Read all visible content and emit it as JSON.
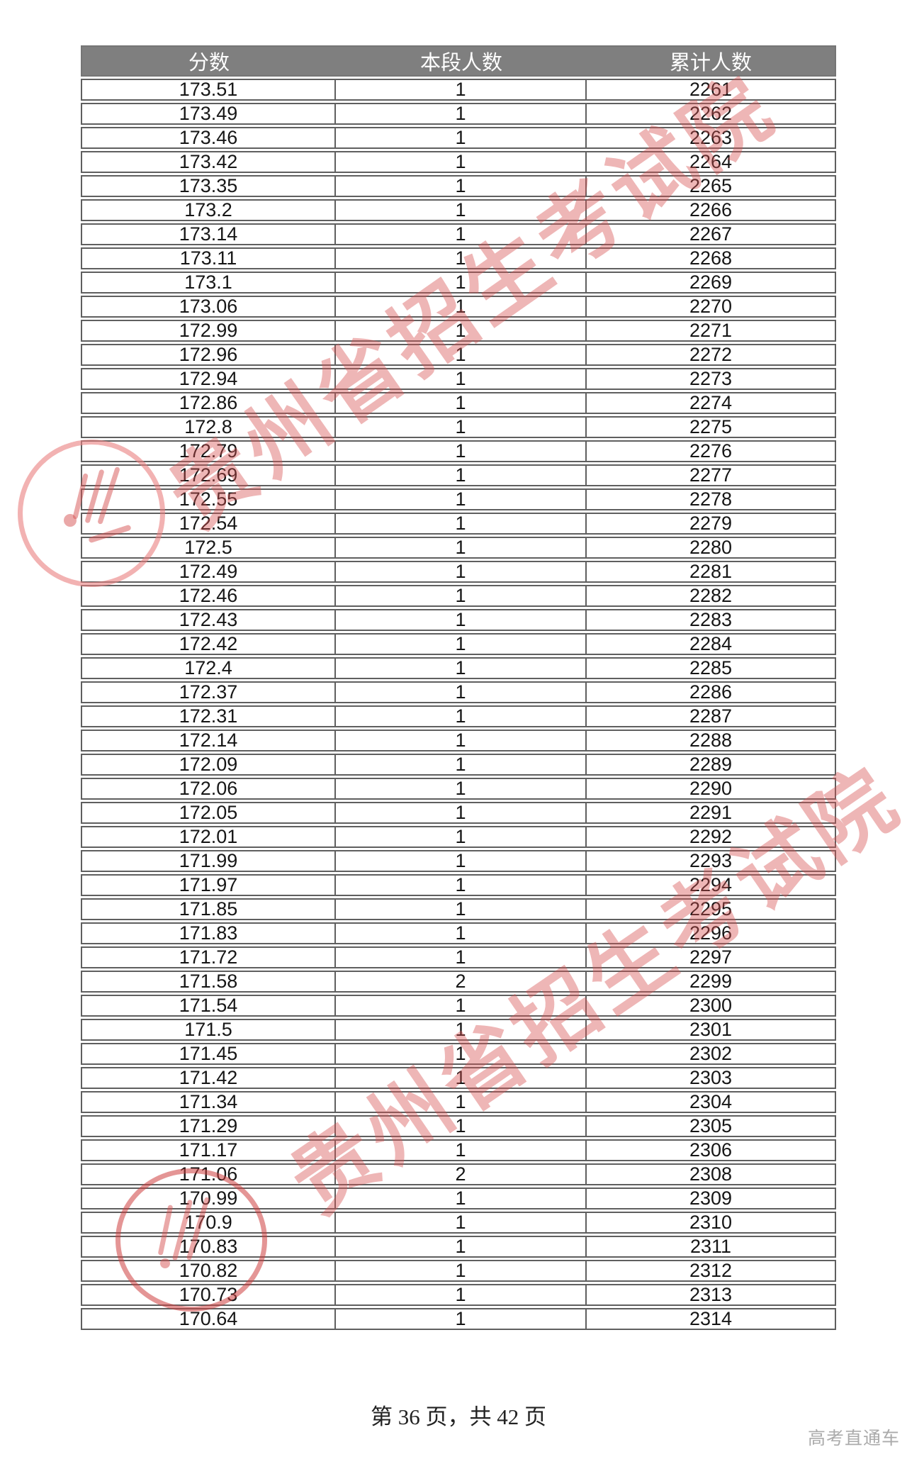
{
  "watermark": {
    "text": "贵州省招生考试院"
  },
  "table": {
    "headers": [
      "分数",
      "本段人数",
      "累计人数"
    ],
    "rows": [
      [
        "173.51",
        1,
        2261
      ],
      [
        "173.49",
        1,
        2262
      ],
      [
        "173.46",
        1,
        2263
      ],
      [
        "173.42",
        1,
        2264
      ],
      [
        "173.35",
        1,
        2265
      ],
      [
        "173.2",
        1,
        2266
      ],
      [
        "173.14",
        1,
        2267
      ],
      [
        "173.11",
        1,
        2268
      ],
      [
        "173.1",
        1,
        2269
      ],
      [
        "173.06",
        1,
        2270
      ],
      [
        "172.99",
        1,
        2271
      ],
      [
        "172.96",
        1,
        2272
      ],
      [
        "172.94",
        1,
        2273
      ],
      [
        "172.86",
        1,
        2274
      ],
      [
        "172.8",
        1,
        2275
      ],
      [
        "172.79",
        1,
        2276
      ],
      [
        "172.69",
        1,
        2277
      ],
      [
        "172.55",
        1,
        2278
      ],
      [
        "172.54",
        1,
        2279
      ],
      [
        "172.5",
        1,
        2280
      ],
      [
        "172.49",
        1,
        2281
      ],
      [
        "172.46",
        1,
        2282
      ],
      [
        "172.43",
        1,
        2283
      ],
      [
        "172.42",
        1,
        2284
      ],
      [
        "172.4",
        1,
        2285
      ],
      [
        "172.37",
        1,
        2286
      ],
      [
        "172.31",
        1,
        2287
      ],
      [
        "172.14",
        1,
        2288
      ],
      [
        "172.09",
        1,
        2289
      ],
      [
        "172.06",
        1,
        2290
      ],
      [
        "172.05",
        1,
        2291
      ],
      [
        "172.01",
        1,
        2292
      ],
      [
        "171.99",
        1,
        2293
      ],
      [
        "171.97",
        1,
        2294
      ],
      [
        "171.85",
        1,
        2295
      ],
      [
        "171.83",
        1,
        2296
      ],
      [
        "171.72",
        1,
        2297
      ],
      [
        "171.58",
        2,
        2299
      ],
      [
        "171.54",
        1,
        2300
      ],
      [
        "171.5",
        1,
        2301
      ],
      [
        "171.45",
        1,
        2302
      ],
      [
        "171.42",
        1,
        2303
      ],
      [
        "171.34",
        1,
        2304
      ],
      [
        "171.29",
        1,
        2305
      ],
      [
        "171.17",
        1,
        2306
      ],
      [
        "171.06",
        2,
        2308
      ],
      [
        "170.99",
        1,
        2309
      ],
      [
        "170.9",
        1,
        2310
      ],
      [
        "170.83",
        1,
        2311
      ],
      [
        "170.82",
        1,
        2312
      ],
      [
        "170.73",
        1,
        2313
      ],
      [
        "170.64",
        1,
        2314
      ]
    ]
  },
  "footer": {
    "text": "第 36 页，共 42 页"
  },
  "brand": {
    "text": "高考直通车"
  },
  "colors": {
    "header_bg": "#7f7f7f",
    "header_text": "#ffffff",
    "row_border": "#5f5f5f",
    "cell_text": "#161616",
    "watermark_red": "#d65252",
    "footer_text": "#222222",
    "brand_gray": "#ababab"
  }
}
